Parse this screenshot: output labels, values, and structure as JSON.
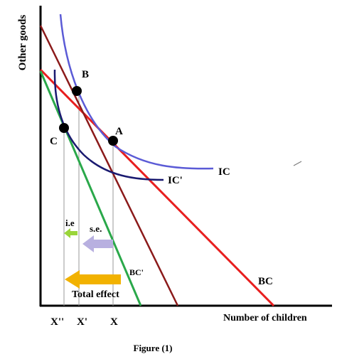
{
  "axes": {
    "y_label": "Other goods",
    "x_label": "Number of children"
  },
  "curves": {
    "ic": "IC",
    "ic_prime": "IC'",
    "bc": "BC",
    "bc_prime": "BC'"
  },
  "points": {
    "a": "A",
    "b": "B",
    "c": "C"
  },
  "ticks": {
    "x_double_prime": "X''",
    "x_prime": "X'",
    "x": "X"
  },
  "effects": {
    "income": "i.e",
    "substitution": "s.e.",
    "total": "Total effect"
  },
  "caption": "Figure (1)",
  "colors": {
    "ic": "#5b5bd6",
    "ic_prime": "#1a1a70",
    "bc": "#e81f1f",
    "bc_prime": "#2aa84a",
    "pivot_line": "#8b1a1a",
    "income_arrow": "#9ad53a",
    "substitution_arrow": "#b8b0e0",
    "total_arrow": "#f2b200"
  }
}
